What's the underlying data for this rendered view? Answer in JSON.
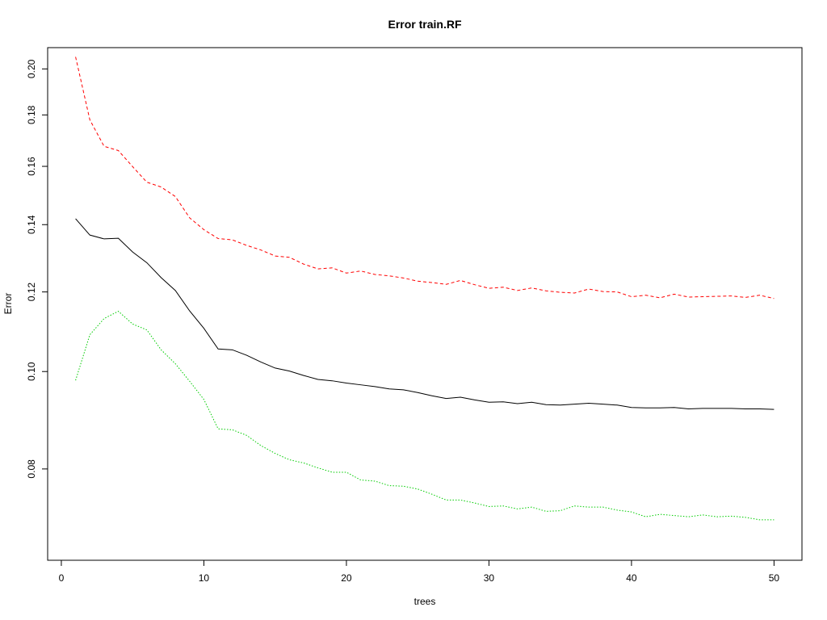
{
  "chart_data": {
    "type": "line",
    "title": "Error train.RF",
    "xlabel": "trees",
    "ylabel": "Error",
    "y_scale": "log",
    "xlim": [
      -0.96,
      51.96
    ],
    "ylim": [
      0.0649,
      0.21
    ],
    "x_ticks": [
      0,
      10,
      20,
      30,
      40,
      50
    ],
    "x_tick_labels": [
      "0",
      "10",
      "20",
      "30",
      "40",
      "50"
    ],
    "y_ticks": [
      0.08,
      0.1,
      0.12,
      0.14,
      0.16,
      0.18,
      0.2
    ],
    "y_tick_labels": [
      "0.08",
      "0.10",
      "0.12",
      "0.14",
      "0.16",
      "0.18",
      "0.20"
    ],
    "grid": false,
    "legend": "none",
    "x": [
      1,
      2,
      3,
      4,
      5,
      6,
      7,
      8,
      9,
      10,
      11,
      12,
      13,
      14,
      15,
      16,
      17,
      18,
      19,
      20,
      21,
      22,
      23,
      24,
      25,
      26,
      27,
      28,
      29,
      30,
      31,
      32,
      33,
      34,
      35,
      36,
      37,
      38,
      39,
      40,
      41,
      42,
      43,
      44,
      45,
      46,
      47,
      48,
      49,
      50
    ],
    "series": [
      {
        "color": "#000000",
        "dash": "solid",
        "values": [
          0.1419,
          0.1367,
          0.1355,
          0.1357,
          0.1315,
          0.1283,
          0.124,
          0.1204,
          0.1149,
          0.1104,
          0.1053,
          0.1051,
          0.1038,
          0.1022,
          0.1008,
          0.1001,
          0.0991,
          0.0982,
          0.0979,
          0.0974,
          0.097,
          0.0966,
          0.0961,
          0.0959,
          0.0953,
          0.0946,
          0.094,
          0.0943,
          0.0937,
          0.0932,
          0.0933,
          0.0929,
          0.0932,
          0.0927,
          0.0926,
          0.0928,
          0.093,
          0.0928,
          0.0926,
          0.0921,
          0.092,
          0.092,
          0.0921,
          0.0918,
          0.0919,
          0.0919,
          0.0919,
          0.0918,
          0.0918,
          0.0917
        ]
      },
      {
        "color": "#ff0000",
        "dash": "dashed",
        "values": [
          0.2056,
          0.178,
          0.1675,
          0.1659,
          0.1599,
          0.1543,
          0.1526,
          0.1493,
          0.1422,
          0.1384,
          0.1356,
          0.1352,
          0.1335,
          0.1321,
          0.1303,
          0.1299,
          0.1279,
          0.1265,
          0.1268,
          0.1253,
          0.1259,
          0.1249,
          0.1245,
          0.1239,
          0.123,
          0.1226,
          0.1221,
          0.1232,
          0.122,
          0.121,
          0.1213,
          0.1204,
          0.1211,
          0.1203,
          0.1199,
          0.1197,
          0.1208,
          0.1201,
          0.12,
          0.1187,
          0.1191,
          0.1184,
          0.1194,
          0.1186,
          0.1187,
          0.1188,
          0.1189,
          0.1185,
          0.1191,
          0.1182
        ]
      },
      {
        "color": "#00cc00",
        "dash": "dotted",
        "values": [
          0.098,
          0.1088,
          0.1129,
          0.1148,
          0.1115,
          0.11,
          0.1051,
          0.1018,
          0.0978,
          0.0938,
          0.0877,
          0.0875,
          0.0864,
          0.0844,
          0.0829,
          0.0817,
          0.0811,
          0.0802,
          0.0794,
          0.0794,
          0.078,
          0.0778,
          0.077,
          0.0769,
          0.0764,
          0.0755,
          0.0745,
          0.0745,
          0.074,
          0.0734,
          0.0735,
          0.073,
          0.0733,
          0.0726,
          0.0727,
          0.0735,
          0.0733,
          0.0733,
          0.0728,
          0.0725,
          0.0717,
          0.0721,
          0.0719,
          0.0717,
          0.072,
          0.0717,
          0.0718,
          0.0716,
          0.0712,
          0.0712
        ]
      }
    ]
  }
}
